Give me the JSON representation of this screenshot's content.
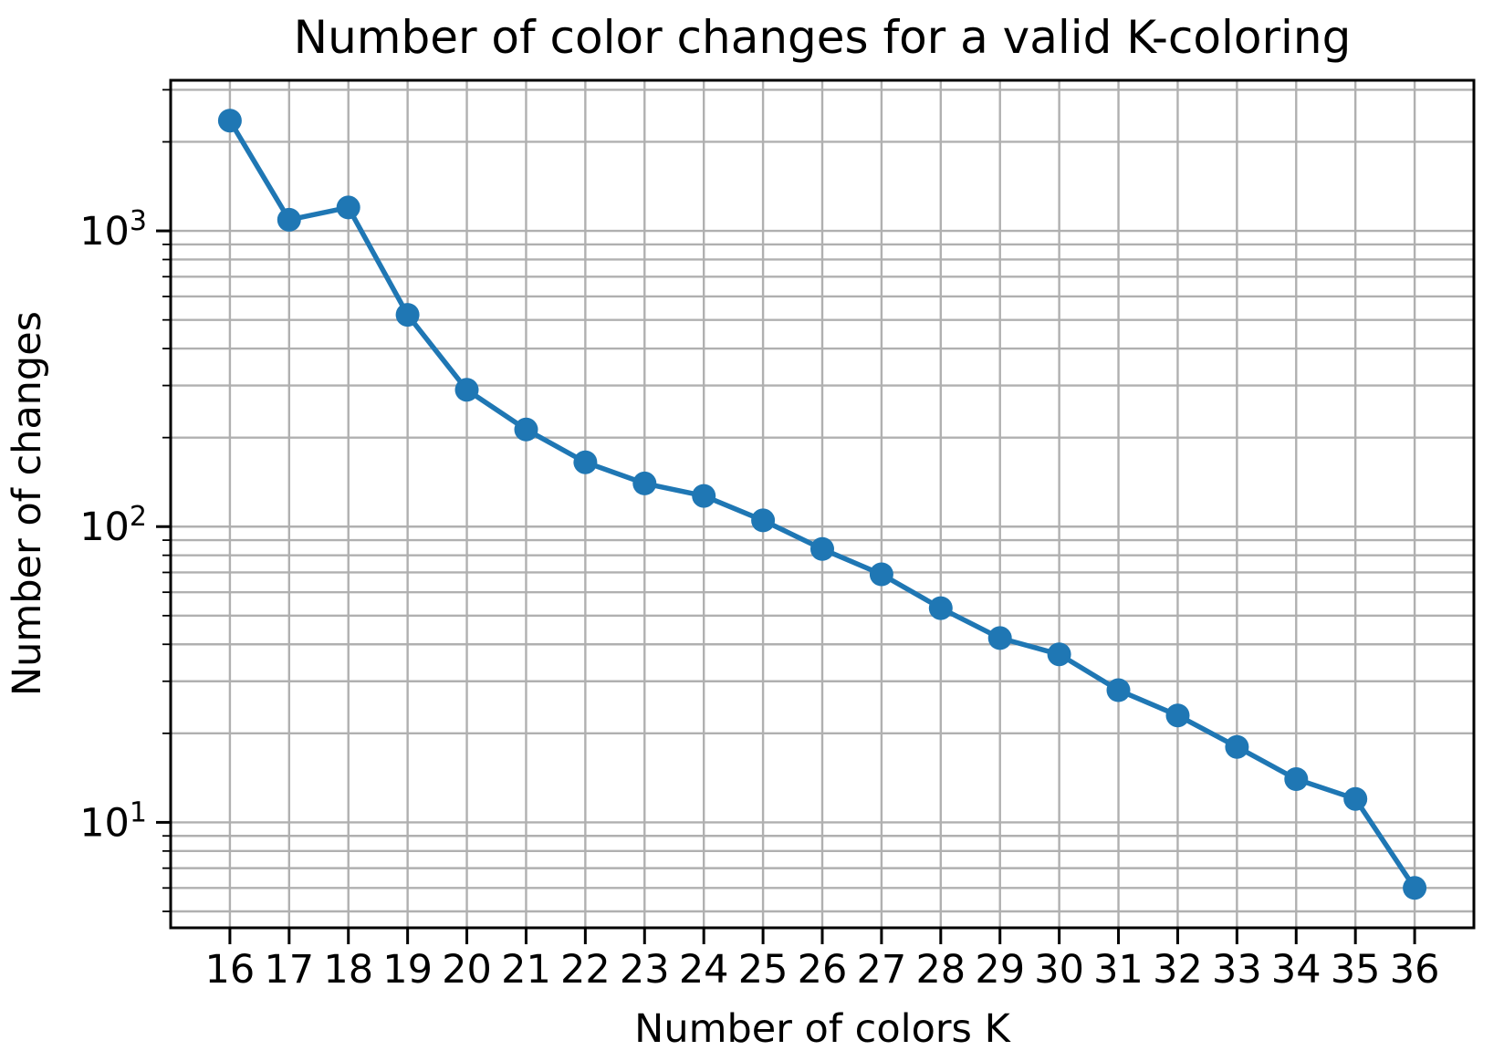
{
  "figure": {
    "background_color": "#ffffff",
    "text_color": "#000000"
  },
  "chart_data": {
    "type": "line",
    "title": "Number of color changes for a valid K-coloring",
    "xlabel": "Number of colors K",
    "ylabel": "Number of changes",
    "x": [
      16,
      17,
      18,
      19,
      20,
      21,
      22,
      23,
      24,
      25,
      26,
      27,
      28,
      29,
      30,
      31,
      32,
      33,
      34,
      35,
      36
    ],
    "series": [
      {
        "name": "color changes",
        "values": [
          2360,
          1090,
          1200,
          520,
          290,
          213,
          165,
          140,
          127,
          105,
          84,
          69,
          53,
          42,
          37,
          28,
          23,
          18,
          14,
          12,
          6
        ],
        "color": "#1f77b4",
        "marker": "circle",
        "line_width": 5.5,
        "marker_radius": 13
      }
    ],
    "xscale": "linear",
    "yscale": "log",
    "xlim": [
      15,
      37
    ],
    "ylim": [
      4.4,
      3230
    ],
    "x_tick_labels": [
      "16",
      "17",
      "18",
      "19",
      "20",
      "21",
      "22",
      "23",
      "24",
      "25",
      "26",
      "27",
      "28",
      "29",
      "30",
      "31",
      "32",
      "33",
      "34",
      "35",
      "36"
    ],
    "y_ticks": {
      "base": "10",
      "exponents": [
        "1",
        "2",
        "3"
      ]
    },
    "grid": true,
    "grid_color": "#b0b0b0",
    "spine_color": "#000000",
    "legend": null
  }
}
